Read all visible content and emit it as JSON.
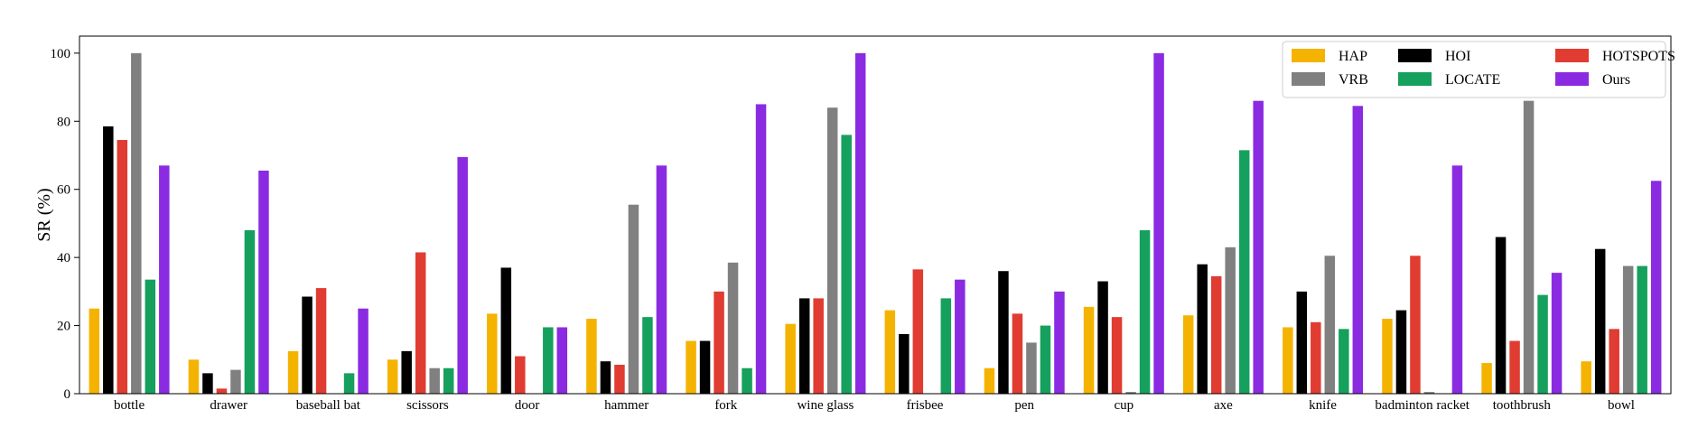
{
  "chart_data": {
    "type": "bar",
    "ylabel": "SR (%)",
    "xlabel": "",
    "ylim": [
      0,
      105
    ],
    "yticks": [
      0,
      20,
      40,
      60,
      80,
      100
    ],
    "grid": false,
    "legend_position": "top-right",
    "legend_columns": 3,
    "categories": [
      "bottle",
      "drawer",
      "baseball bat",
      "scissors",
      "door",
      "hammer",
      "fork",
      "wine glass",
      "frisbee",
      "pen",
      "cup",
      "axe",
      "knife",
      "badminton racket",
      "toothbrush",
      "bowl"
    ],
    "series": [
      {
        "name": "HAP",
        "color": "#f5b301",
        "values": [
          25,
          10,
          12.5,
          10,
          23.5,
          22,
          15.5,
          20.5,
          24.5,
          7.5,
          25.5,
          23,
          19.5,
          22,
          9,
          9.5
        ]
      },
      {
        "name": "HOI",
        "color": "#000000",
        "values": [
          78.5,
          6,
          28.5,
          12.5,
          37,
          9.5,
          15.5,
          28,
          17.5,
          36,
          33,
          38,
          30,
          24.5,
          46,
          42.5
        ]
      },
      {
        "name": "HOTSPOTS",
        "color": "#e03c31",
        "values": [
          74.5,
          1.5,
          31,
          41.5,
          11,
          8.5,
          30,
          28,
          36.5,
          23.5,
          22.5,
          34.5,
          21,
          40.5,
          15.5,
          19
        ]
      },
      {
        "name": "VRB",
        "color": "#808080",
        "values": [
          100,
          7,
          0,
          7.5,
          0,
          55.5,
          38.5,
          84,
          0,
          15,
          0.5,
          43,
          40.5,
          0.5,
          86,
          37.5
        ]
      },
      {
        "name": "LOCATE",
        "color": "#16a05d",
        "values": [
          33.5,
          48,
          6,
          7.5,
          19.5,
          22.5,
          7.5,
          76,
          28,
          20,
          48,
          71.5,
          19,
          0,
          29,
          37.5
        ]
      },
      {
        "name": "Ours",
        "color": "#8a2be2",
        "values": [
          67,
          65.5,
          25,
          69.5,
          19.5,
          67,
          85,
          100,
          33.5,
          30,
          100,
          86,
          84.5,
          67,
          35.5,
          62.5
        ]
      }
    ]
  }
}
